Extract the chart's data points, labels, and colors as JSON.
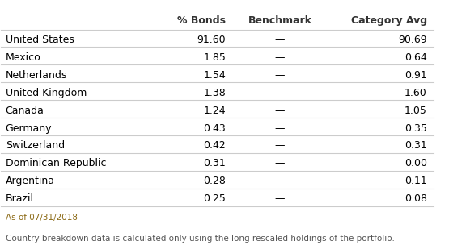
{
  "headers": [
    "% Bonds",
    "Benchmark",
    "Category Avg"
  ],
  "rows": [
    [
      "United States",
      "91.60",
      "—",
      "90.69"
    ],
    [
      "Mexico",
      "1.85",
      "—",
      "0.64"
    ],
    [
      "Netherlands",
      "1.54",
      "—",
      "0.91"
    ],
    [
      "United Kingdom",
      "1.38",
      "—",
      "1.60"
    ],
    [
      "Canada",
      "1.24",
      "—",
      "1.05"
    ],
    [
      "Germany",
      "0.43",
      "—",
      "0.35"
    ],
    [
      "Switzerland",
      "0.42",
      "—",
      "0.31"
    ],
    [
      "Dominican Republic",
      "0.31",
      "—",
      "0.00"
    ],
    [
      "Argentina",
      "0.28",
      "—",
      "0.11"
    ],
    [
      "Brazil",
      "0.25",
      "—",
      "0.08"
    ]
  ],
  "footnote1": "As of 07/31/2018",
  "footnote2": "Country breakdown data is calculated only using the long rescaled holdings of the portfolio.",
  "bg_color": "#ffffff",
  "header_color": "#333333",
  "row_color": "#000000",
  "separator_color": "#cccccc",
  "footnote_color": "#8b6914",
  "footnote2_color": "#555555",
  "header_fontsize": 9,
  "row_fontsize": 9,
  "footnote_fontsize": 7.5
}
